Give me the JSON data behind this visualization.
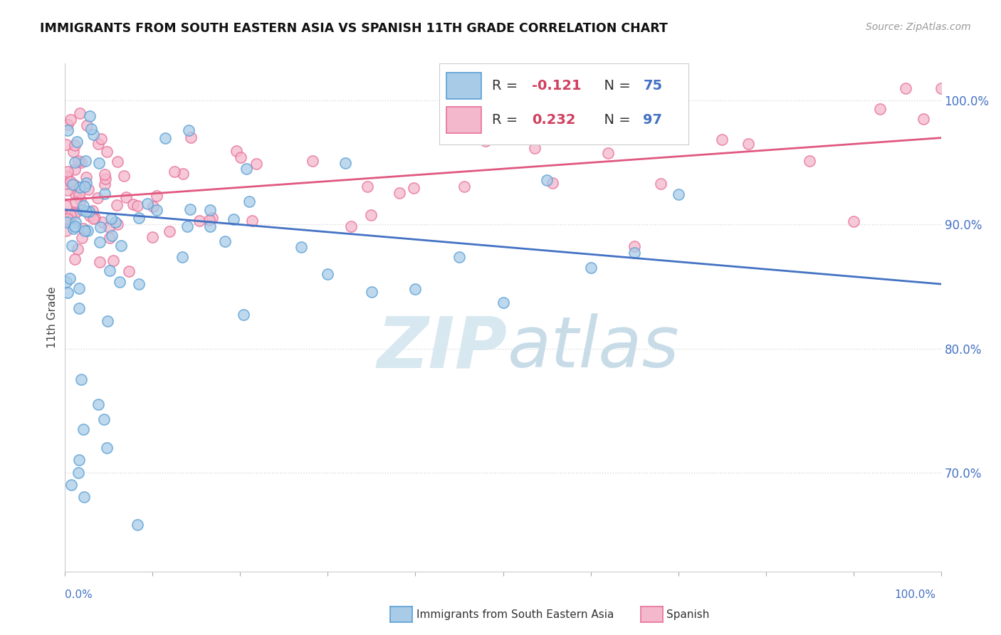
{
  "title": "IMMIGRANTS FROM SOUTH EASTERN ASIA VS SPANISH 11TH GRADE CORRELATION CHART",
  "source": "Source: ZipAtlas.com",
  "ylabel": "11th Grade",
  "blue_color": "#a8cce8",
  "pink_color": "#f4b8cc",
  "blue_edge_color": "#5a9fd4",
  "pink_edge_color": "#e8709a",
  "blue_line_color": "#4472c4",
  "pink_line_color": "#e05880",
  "right_tick_color": "#4472c4",
  "watermark_color_zip": "#d8e8f0",
  "watermark_color_atlas": "#c8dce8",
  "background_color": "#ffffff",
  "grid_color": "#d8d8d8",
  "blue_trend_y_start": 0.912,
  "blue_trend_y_end": 0.852,
  "pink_trend_y_start": 0.92,
  "pink_trend_y_end": 0.97,
  "xlim": [
    0.0,
    1.0
  ],
  "ylim": [
    0.62,
    1.03
  ],
  "yticks": [
    0.7,
    0.8,
    0.9,
    1.0
  ],
  "ytick_labels": [
    "70.0%",
    "80.0%",
    "90.0%",
    "100.0%"
  ],
  "marker_size": 120,
  "marker_alpha": 0.75
}
